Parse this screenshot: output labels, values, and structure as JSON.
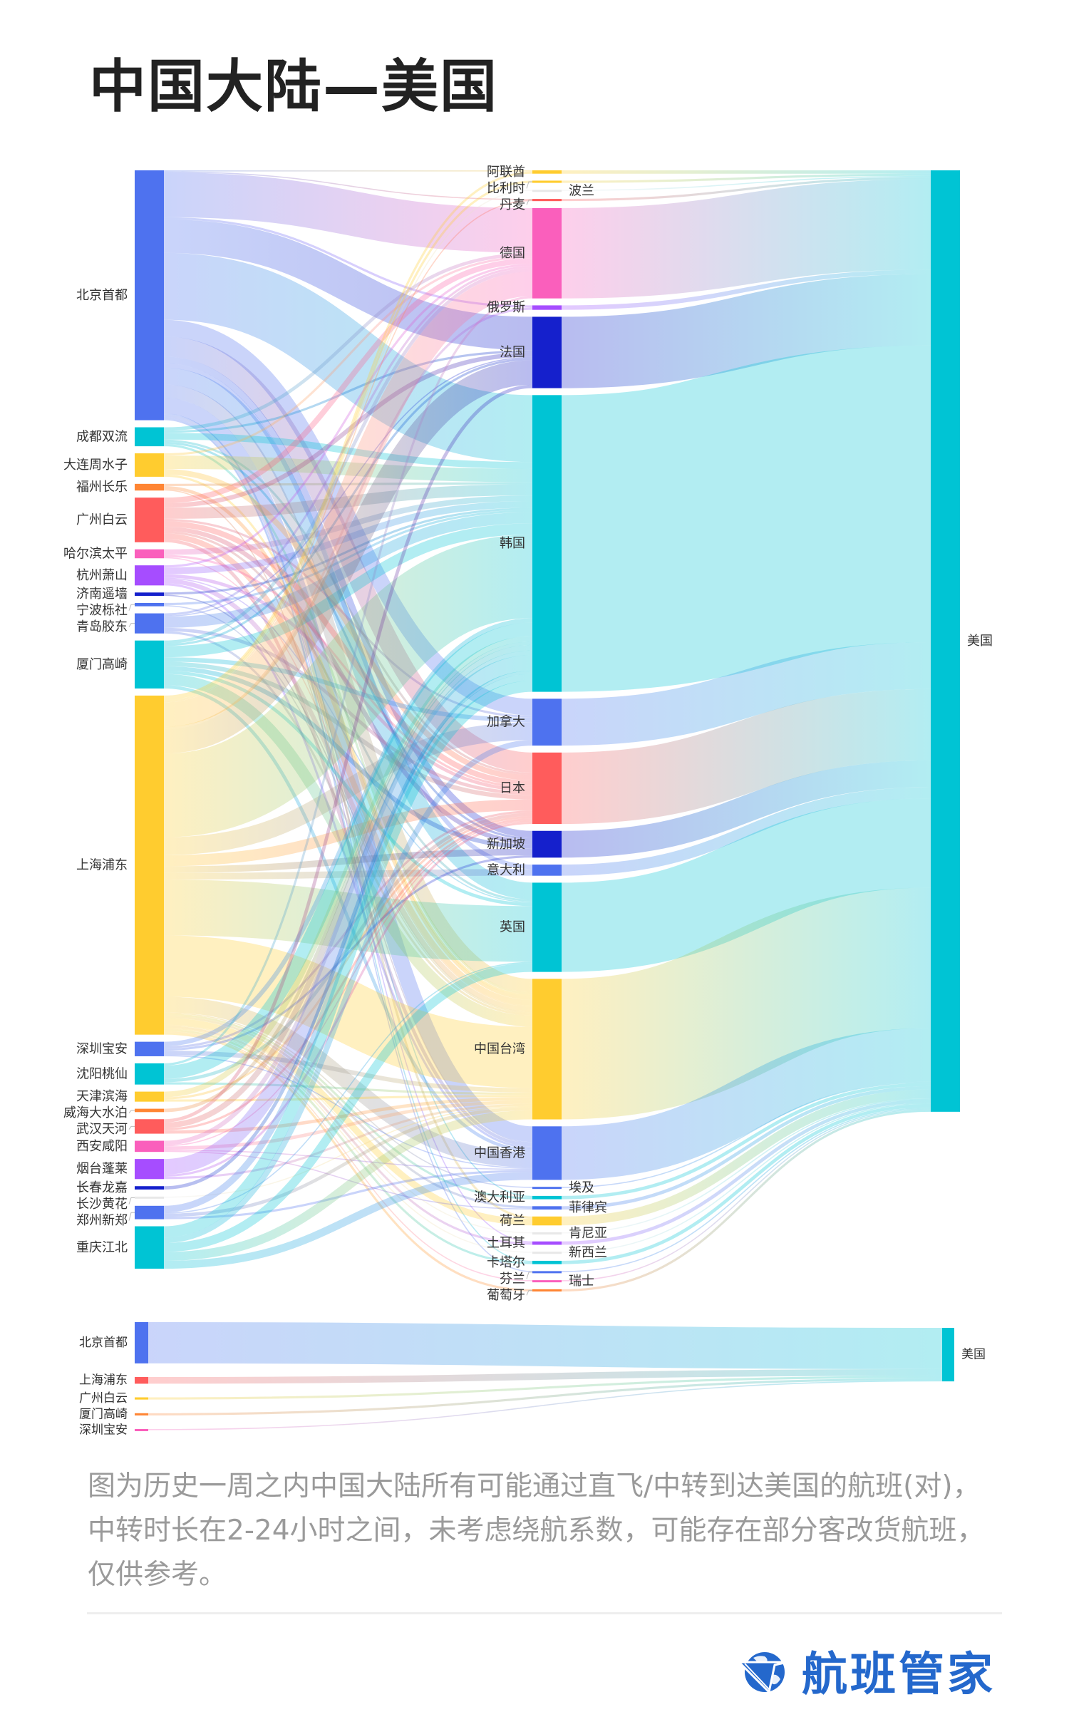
{
  "title": "中国大陆—美国",
  "caption": "图为历史一周之内中国大陆所有可能通过直飞/中转到达美国的航班(对)，中转时长在2-24小时之间，未考虑绕航系数，可能存在部分客改货航班，仅供参考。",
  "brand": {
    "name": "航班管家",
    "color": "#2468cc",
    "icon": "globe-plane-logo-icon"
  },
  "palette": {
    "blue": "#4e72ef",
    "cyan": "#00c4d4",
    "yellow": "#ffcc2f",
    "orange": "#ff8533",
    "red": "#ff5c5c",
    "pink": "#fa5fbc",
    "purple": "#a64dff",
    "navy": "#1520cc",
    "white": "#e8e8e8"
  },
  "chart_data": [
    {
      "type": "sankey",
      "title": "",
      "columns": [
        [
          {
            "name": "北京首都",
            "color": "blue"
          },
          {
            "name": "成都双流",
            "color": "cyan"
          },
          {
            "name": "大连周水子",
            "color": "yellow"
          },
          {
            "name": "福州长乐",
            "color": "orange"
          },
          {
            "name": "广州白云",
            "color": "red"
          },
          {
            "name": "哈尔滨太平",
            "color": "pink"
          },
          {
            "name": "杭州萧山",
            "color": "purple"
          },
          {
            "name": "济南遥墙",
            "color": "navy"
          },
          {
            "name": "宁波栎社",
            "color": "blue"
          },
          {
            "name": "青岛胶东",
            "color": "blue"
          },
          {
            "name": "厦门高崎",
            "color": "cyan"
          },
          {
            "name": "上海浦东",
            "color": "yellow"
          },
          {
            "name": "深圳宝安",
            "color": "blue"
          },
          {
            "name": "沈阳桃仙",
            "color": "cyan"
          },
          {
            "name": "天津滨海",
            "color": "yellow"
          },
          {
            "name": "威海大水泊",
            "color": "orange"
          },
          {
            "name": "武汉天河",
            "color": "red"
          },
          {
            "name": "西安咸阳",
            "color": "pink"
          },
          {
            "name": "烟台蓬莱",
            "color": "purple"
          },
          {
            "name": "长春龙嘉",
            "color": "navy"
          },
          {
            "name": "长沙黄花",
            "color": "white"
          },
          {
            "name": "郑州新郑",
            "color": "blue"
          },
          {
            "name": "重庆江北",
            "color": "cyan"
          }
        ],
        [
          {
            "name": "阿联酋",
            "color": "yellow",
            "label_side": "left"
          },
          {
            "name": "比利时",
            "color": "yellow",
            "label_side": "left"
          },
          {
            "name": "波兰",
            "color": "white",
            "label_side": "right"
          },
          {
            "name": "丹麦",
            "color": "red",
            "label_side": "left"
          },
          {
            "name": "德国",
            "color": "pink",
            "label_side": "left"
          },
          {
            "name": "俄罗斯",
            "color": "purple",
            "label_side": "left"
          },
          {
            "name": "法国",
            "color": "navy",
            "label_side": "left"
          },
          {
            "name": "韩国",
            "color": "cyan",
            "label_side": "left"
          },
          {
            "name": "加拿大",
            "color": "blue",
            "label_side": "left"
          },
          {
            "name": "日本",
            "color": "red",
            "label_side": "left"
          },
          {
            "name": "新加坡",
            "color": "navy",
            "label_side": "left"
          },
          {
            "name": "意大利",
            "color": "blue",
            "label_side": "left"
          },
          {
            "name": "英国",
            "color": "cyan",
            "label_side": "left"
          },
          {
            "name": "中国台湾",
            "color": "yellow",
            "label_side": "left"
          },
          {
            "name": "中国香港",
            "color": "blue",
            "label_side": "left"
          },
          {
            "name": "埃及",
            "color": "blue",
            "label_side": "right"
          },
          {
            "name": "澳大利亚",
            "color": "cyan",
            "label_side": "left"
          },
          {
            "name": "菲律宾",
            "color": "blue",
            "label_side": "right"
          },
          {
            "name": "荷兰",
            "color": "yellow",
            "label_side": "left"
          },
          {
            "name": "肯尼亚",
            "color": "white",
            "label_side": "right"
          },
          {
            "name": "土耳其",
            "color": "purple",
            "label_side": "left"
          },
          {
            "name": "新西兰",
            "color": "white",
            "label_side": "right"
          },
          {
            "name": "卡塔尔",
            "color": "cyan",
            "label_side": "left"
          },
          {
            "name": "芬兰",
            "color": "blue",
            "label_side": "left"
          },
          {
            "name": "瑞士",
            "color": "pink",
            "label_side": "right"
          },
          {
            "name": "葡萄牙",
            "color": "orange",
            "label_side": "left"
          }
        ],
        [
          {
            "name": "美国",
            "color": "cyan",
            "label_side": "right"
          }
        ]
      ],
      "links": [
        [
          "北京首都",
          "德国",
          40
        ],
        [
          "北京首都",
          "法国",
          30
        ],
        [
          "北京首都",
          "韩国",
          60
        ],
        [
          "北京首都",
          "加拿大",
          15
        ],
        [
          "北京首都",
          "日本",
          18
        ],
        [
          "北京首都",
          "新加坡",
          6
        ],
        [
          "北京首都",
          "意大利",
          4
        ],
        [
          "北京首都",
          "英国",
          15
        ],
        [
          "北京首都",
          "中国台湾",
          12
        ],
        [
          "北京首都",
          "中国香港",
          14
        ],
        [
          "北京首都",
          "阿联酋",
          1
        ],
        [
          "北京首都",
          "丹麦",
          1
        ],
        [
          "北京首都",
          "俄罗斯",
          2
        ],
        [
          "北京首都",
          "荷兰",
          2
        ],
        [
          "北京首都",
          "土耳其",
          1
        ],
        [
          "北京首都",
          "卡塔尔",
          1
        ],
        [
          "北京首都",
          "芬兰",
          1
        ],
        [
          "北京首都",
          "澳大利亚",
          1
        ],
        [
          "成都双流",
          "韩国",
          6
        ],
        [
          "成都双流",
          "德国",
          3
        ],
        [
          "成都双流",
          "法国",
          2
        ],
        [
          "成都双流",
          "日本",
          2
        ],
        [
          "成都双流",
          "中国台湾",
          2
        ],
        [
          "成都双流",
          "新加坡",
          2
        ],
        [
          "大连周水子",
          "韩国",
          12
        ],
        [
          "大连周水子",
          "日本",
          5
        ],
        [
          "大连周水子",
          "中国台湾",
          2
        ],
        [
          "大连周水子",
          "德国",
          2
        ],
        [
          "福州长乐",
          "中国台湾",
          3
        ],
        [
          "福州长乐",
          "韩国",
          2
        ],
        [
          "福州长乐",
          "中国香港",
          1
        ],
        [
          "广州白云",
          "韩国",
          10
        ],
        [
          "广州白云",
          "德国",
          5
        ],
        [
          "广州白云",
          "法国",
          4
        ],
        [
          "广州白云",
          "日本",
          5
        ],
        [
          "广州白云",
          "新加坡",
          4
        ],
        [
          "广州白云",
          "中国台湾",
          5
        ],
        [
          "广州白云",
          "中国香港",
          3
        ],
        [
          "广州白云",
          "英国",
          2
        ],
        [
          "广州白云",
          "加拿大",
          2
        ],
        [
          "哈尔滨太平",
          "韩国",
          5
        ],
        [
          "哈尔滨太平",
          "日本",
          2
        ],
        [
          "哈尔滨太平",
          "中国台湾",
          1
        ],
        [
          "杭州萧山",
          "韩国",
          6
        ],
        [
          "杭州萧山",
          "德国",
          2
        ],
        [
          "杭州萧山",
          "日本",
          3
        ],
        [
          "杭州萧山",
          "中国台湾",
          4
        ],
        [
          "杭州萧山",
          "中国香港",
          2
        ],
        [
          "杭州萧山",
          "英国",
          1
        ],
        [
          "济南遥墙",
          "韩国",
          2
        ],
        [
          "济南遥墙",
          "中国台湾",
          1
        ],
        [
          "宁波栎社",
          "韩国",
          2
        ],
        [
          "宁波栎社",
          "中国台湾",
          1
        ],
        [
          "青岛胶东",
          "韩国",
          10
        ],
        [
          "青岛胶东",
          "日本",
          3
        ],
        [
          "青岛胶东",
          "中国台湾",
          2
        ],
        [
          "青岛胶东",
          "法国",
          1
        ],
        [
          "青岛胶东",
          "德国",
          2
        ],
        [
          "厦门高崎",
          "韩国",
          10
        ],
        [
          "厦门高崎",
          "中国台湾",
          10
        ],
        [
          "厦门高崎",
          "加拿大",
          4
        ],
        [
          "厦门高崎",
          "日本",
          4
        ],
        [
          "厦门高崎",
          "新加坡",
          4
        ],
        [
          "厦门高崎",
          "英国",
          3
        ],
        [
          "厦门高崎",
          "德国",
          3
        ],
        [
          "厦门高崎",
          "法国",
          2
        ],
        [
          "厦门高崎",
          "中国香港",
          3
        ],
        [
          "上海浦东",
          "韩国",
          75
        ],
        [
          "上海浦东",
          "德国",
          22
        ],
        [
          "上海浦东",
          "法国",
          22
        ],
        [
          "上海浦东",
          "加拿大",
          16
        ],
        [
          "上海浦东",
          "日本",
          10
        ],
        [
          "上海浦东",
          "新加坡",
          6
        ],
        [
          "上海浦东",
          "意大利",
          6
        ],
        [
          "上海浦东",
          "英国",
          50
        ],
        [
          "上海浦东",
          "中国台湾",
          55
        ],
        [
          "上海浦东",
          "中国香港",
          14
        ],
        [
          "上海浦东",
          "阿联酋",
          2
        ],
        [
          "上海浦东",
          "比利时",
          2
        ],
        [
          "上海浦东",
          "波兰",
          1
        ],
        [
          "上海浦东",
          "丹麦",
          1
        ],
        [
          "上海浦东",
          "俄罗斯",
          2
        ],
        [
          "上海浦东",
          "埃及",
          1
        ],
        [
          "上海浦东",
          "澳大利亚",
          2
        ],
        [
          "上海浦东",
          "菲律宾",
          2
        ],
        [
          "上海浦东",
          "荷兰",
          6
        ],
        [
          "上海浦东",
          "肯尼亚",
          1
        ],
        [
          "上海浦东",
          "新西兰",
          1
        ],
        [
          "上海浦东",
          "瑞士",
          1
        ],
        [
          "上海浦东",
          "葡萄牙",
          2
        ],
        [
          "上海浦东",
          "土耳其",
          2
        ],
        [
          "上海浦东",
          "卡塔尔",
          2
        ],
        [
          "深圳宝安",
          "韩国",
          4
        ],
        [
          "深圳宝安",
          "中国台湾",
          4
        ],
        [
          "深圳宝安",
          "日本",
          2
        ],
        [
          "深圳宝安",
          "新加坡",
          2
        ],
        [
          "深圳宝安",
          "中国香港",
          1
        ],
        [
          "沈阳桃仙",
          "韩国",
          12
        ],
        [
          "沈阳桃仙",
          "日本",
          3
        ],
        [
          "沈阳桃仙",
          "中国台湾",
          2
        ],
        [
          "沈阳桃仙",
          "德国",
          2
        ],
        [
          "天津滨海",
          "韩国",
          5
        ],
        [
          "天津滨海",
          "日本",
          2
        ],
        [
          "天津滨海",
          "中国台湾",
          2
        ],
        [
          "威海大水泊",
          "韩国",
          3
        ],
        [
          "武汉天河",
          "韩国",
          5
        ],
        [
          "武汉天河",
          "法国",
          3
        ],
        [
          "武汉天河",
          "中国台湾",
          3
        ],
        [
          "武汉天河",
          "日本",
          2
        ],
        [
          "西安咸阳",
          "韩国",
          4
        ],
        [
          "西安咸阳",
          "中国台湾",
          3
        ],
        [
          "西安咸阳",
          "日本",
          1
        ],
        [
          "西安咸阳",
          "中国香港",
          1
        ],
        [
          "西安咸阳",
          "菲律宾",
          1
        ],
        [
          "烟台蓬莱",
          "韩国",
          14
        ],
        [
          "烟台蓬莱",
          "中国台湾",
          2
        ],
        [
          "烟台蓬莱",
          "日本",
          2
        ],
        [
          "长春龙嘉",
          "韩国",
          3
        ],
        [
          "长沙黄花",
          "中国台湾",
          1
        ],
        [
          "郑州新郑",
          "韩国",
          6
        ],
        [
          "郑州新郑",
          "中国台湾",
          3
        ],
        [
          "郑州新郑",
          "中国香港",
          2
        ],
        [
          "郑州新郑",
          "英国",
          1
        ],
        [
          "重庆江北",
          "韩国",
          10
        ],
        [
          "重庆江北",
          "英国",
          8
        ],
        [
          "重庆江北",
          "中国台湾",
          8
        ],
        [
          "重庆江北",
          "中国香港",
          7
        ],
        [
          "重庆江北",
          "加拿大",
          5
        ]
      ],
      "final_destination": "美国"
    },
    {
      "type": "sankey",
      "title": "",
      "columns": [
        [
          {
            "name": "北京首都",
            "color": "blue"
          },
          {
            "name": "上海浦东",
            "color": "red"
          },
          {
            "name": "广州白云",
            "color": "yellow"
          },
          {
            "name": "厦门高崎",
            "color": "orange"
          },
          {
            "name": "深圳宝安",
            "color": "pink"
          }
        ],
        [
          {
            "name": "美国",
            "color": "cyan",
            "label_side": "right"
          }
        ]
      ],
      "links": [
        [
          "北京首都",
          "美国",
          37
        ],
        [
          "上海浦东",
          "美国",
          6
        ],
        [
          "广州白云",
          "美国",
          2
        ],
        [
          "厦门高崎",
          "美国",
          2
        ],
        [
          "深圳宝安",
          "美国",
          1
        ]
      ]
    }
  ]
}
